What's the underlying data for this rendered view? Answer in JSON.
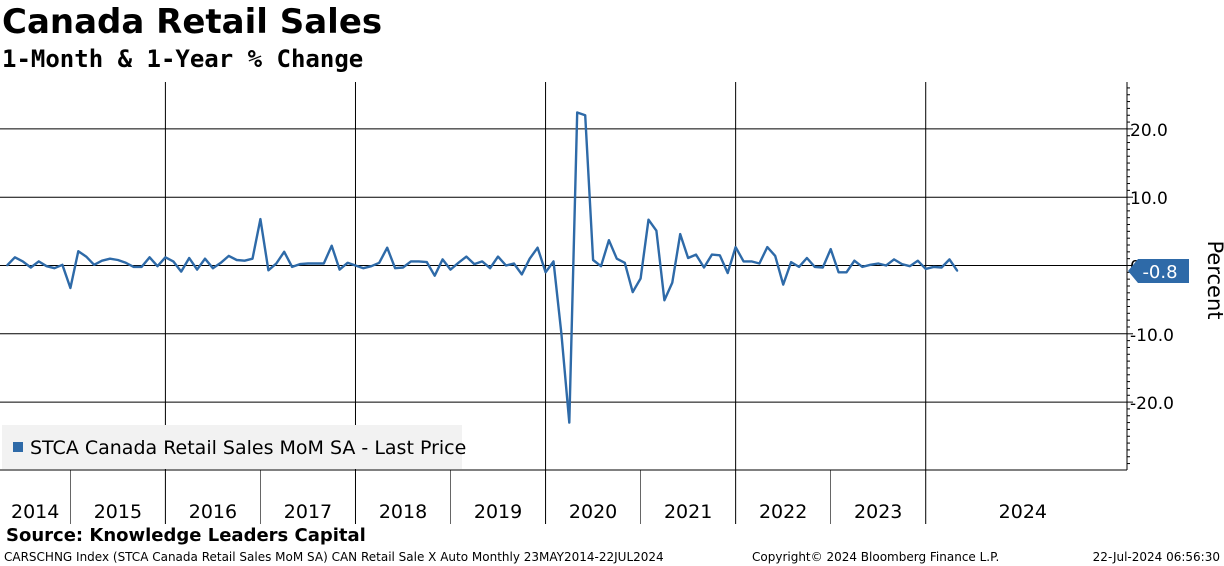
{
  "header": {
    "title": "Canada Retail Sales",
    "subtitle": "1-Month & 1-Year % Change"
  },
  "legend": {
    "label": "STCA Canada Retail Sales MoM SA - Last Price"
  },
  "source": "Source: Knowledge Leaders Capital",
  "footer": {
    "left": "CARSCHNG Index (STCA Canada Retail Sales MoM SA) CAN Retail Sale X Auto  Monthly 23MAY2014-22JUL2024",
    "middle": "Copyright© 2024 Bloomberg Finance L.P.",
    "right": "22-Jul-2024 06:56:30"
  },
  "colors": {
    "series": "#2e6aa8",
    "grid": "#000000"
  },
  "chart_data": {
    "type": "line",
    "ylabel": "Percent",
    "ylim": [
      -30,
      27
    ],
    "yticks": [
      20,
      10,
      0,
      -10,
      -20
    ],
    "ytick_labels": [
      "20.0",
      "10.0",
      "0.0",
      "-10.0",
      "-20.0"
    ],
    "year_labels": [
      "2014",
      "2015",
      "2016",
      "2017",
      "2018",
      "2019",
      "2020",
      "2021",
      "2022",
      "2023",
      "2024"
    ],
    "x_start": "2014-05",
    "x_end": "2024-05",
    "grid": true,
    "last_value_label": "-0.8",
    "series": [
      {
        "name": "STCA Canada Retail Sales MoM SA - Last Price",
        "values": [
          0.0,
          1.2,
          0.6,
          -0.3,
          0.6,
          -0.1,
          -0.4,
          0.1,
          -3.3,
          2.1,
          1.3,
          0.1,
          0.7,
          1.0,
          0.8,
          0.4,
          -0.2,
          -0.2,
          1.2,
          -0.1,
          1.2,
          0.6,
          -0.9,
          1.1,
          -0.6,
          1.0,
          -0.4,
          0.4,
          1.4,
          0.8,
          0.7,
          1.0,
          6.8,
          -0.7,
          0.3,
          2.0,
          -0.2,
          0.2,
          0.3,
          0.3,
          0.3,
          2.9,
          -0.6,
          0.4,
          0.0,
          -0.4,
          -0.1,
          0.4,
          2.6,
          -0.4,
          -0.3,
          0.6,
          0.6,
          0.5,
          -1.5,
          0.9,
          -0.6,
          0.4,
          1.3,
          0.2,
          0.6,
          -0.4,
          1.3,
          0.0,
          0.3,
          -1.3,
          1.0,
          2.6,
          -1.0,
          0.6,
          -10.0,
          -23.0,
          22.4,
          22.0,
          0.8,
          -0.1,
          3.7,
          1.0,
          0.4,
          -3.9,
          -1.9,
          6.7,
          5.1,
          -5.1,
          -2.5,
          4.6,
          1.1,
          1.6,
          -0.3,
          1.6,
          1.5,
          -1.1,
          2.7,
          0.6,
          0.6,
          0.3,
          2.7,
          1.4,
          -2.8,
          0.5,
          -0.2,
          1.1,
          -0.2,
          -0.3,
          2.4,
          -1.0,
          -1.0,
          0.7,
          -0.2,
          0.1,
          0.3,
          0.0,
          0.9,
          0.2,
          -0.1,
          0.7,
          -0.5,
          -0.2,
          -0.3,
          0.9,
          -0.8
        ]
      }
    ]
  }
}
